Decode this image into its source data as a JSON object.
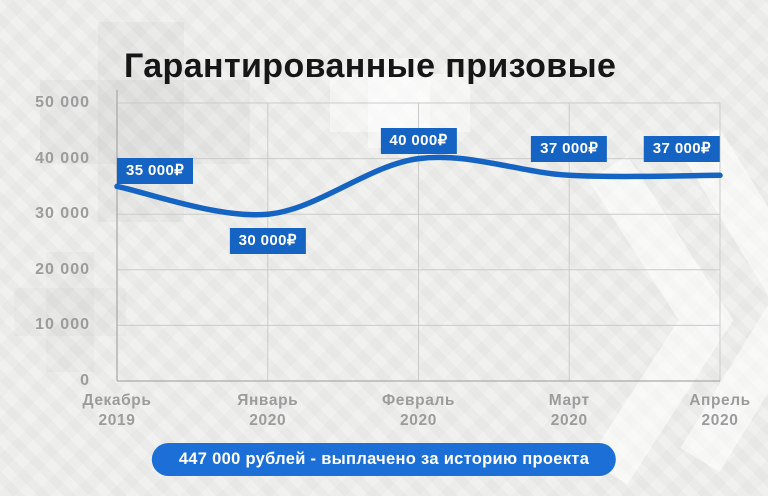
{
  "page": {
    "title": "Гарантированные призовые"
  },
  "chart_data": {
    "type": "line",
    "title": "Гарантированные призовые",
    "x_labels": [
      {
        "month": "Декабрь",
        "year": "2019"
      },
      {
        "month": "Январь",
        "year": "2020"
      },
      {
        "month": "Февраль",
        "year": "2020"
      },
      {
        "month": "Март",
        "year": "2020"
      },
      {
        "month": "Апрель",
        "year": "2020"
      }
    ],
    "values": [
      35000,
      30000,
      40000,
      37000,
      37000
    ],
    "point_labels": [
      {
        "text": "35 000₽",
        "align": "left",
        "dy": -28
      },
      {
        "text": "30 000₽",
        "align": "center",
        "dy": 14
      },
      {
        "text": "40 000₽",
        "align": "center",
        "dy": -31
      },
      {
        "text": "37 000₽",
        "align": "center",
        "dy": -39
      },
      {
        "text": "37 000₽",
        "align": "right",
        "dy": -39
      }
    ],
    "ylim": [
      0,
      50000
    ],
    "ytick_labels": [
      "50 000",
      "40 000",
      "30 000",
      "20 000",
      "10 000",
      "0"
    ],
    "grid": true,
    "legend": "none",
    "line_color": "#1564c4"
  },
  "footer": {
    "text": "447 000 рублей - выплачено за историю проекта"
  },
  "colors": {
    "background": "#ececea",
    "accent": "#1564c4",
    "pill": "#1b6fd6",
    "axis_text": "#9c9c9c",
    "grid": "#cbcbcb",
    "axis_line": "#ababab",
    "title": "#161616"
  }
}
